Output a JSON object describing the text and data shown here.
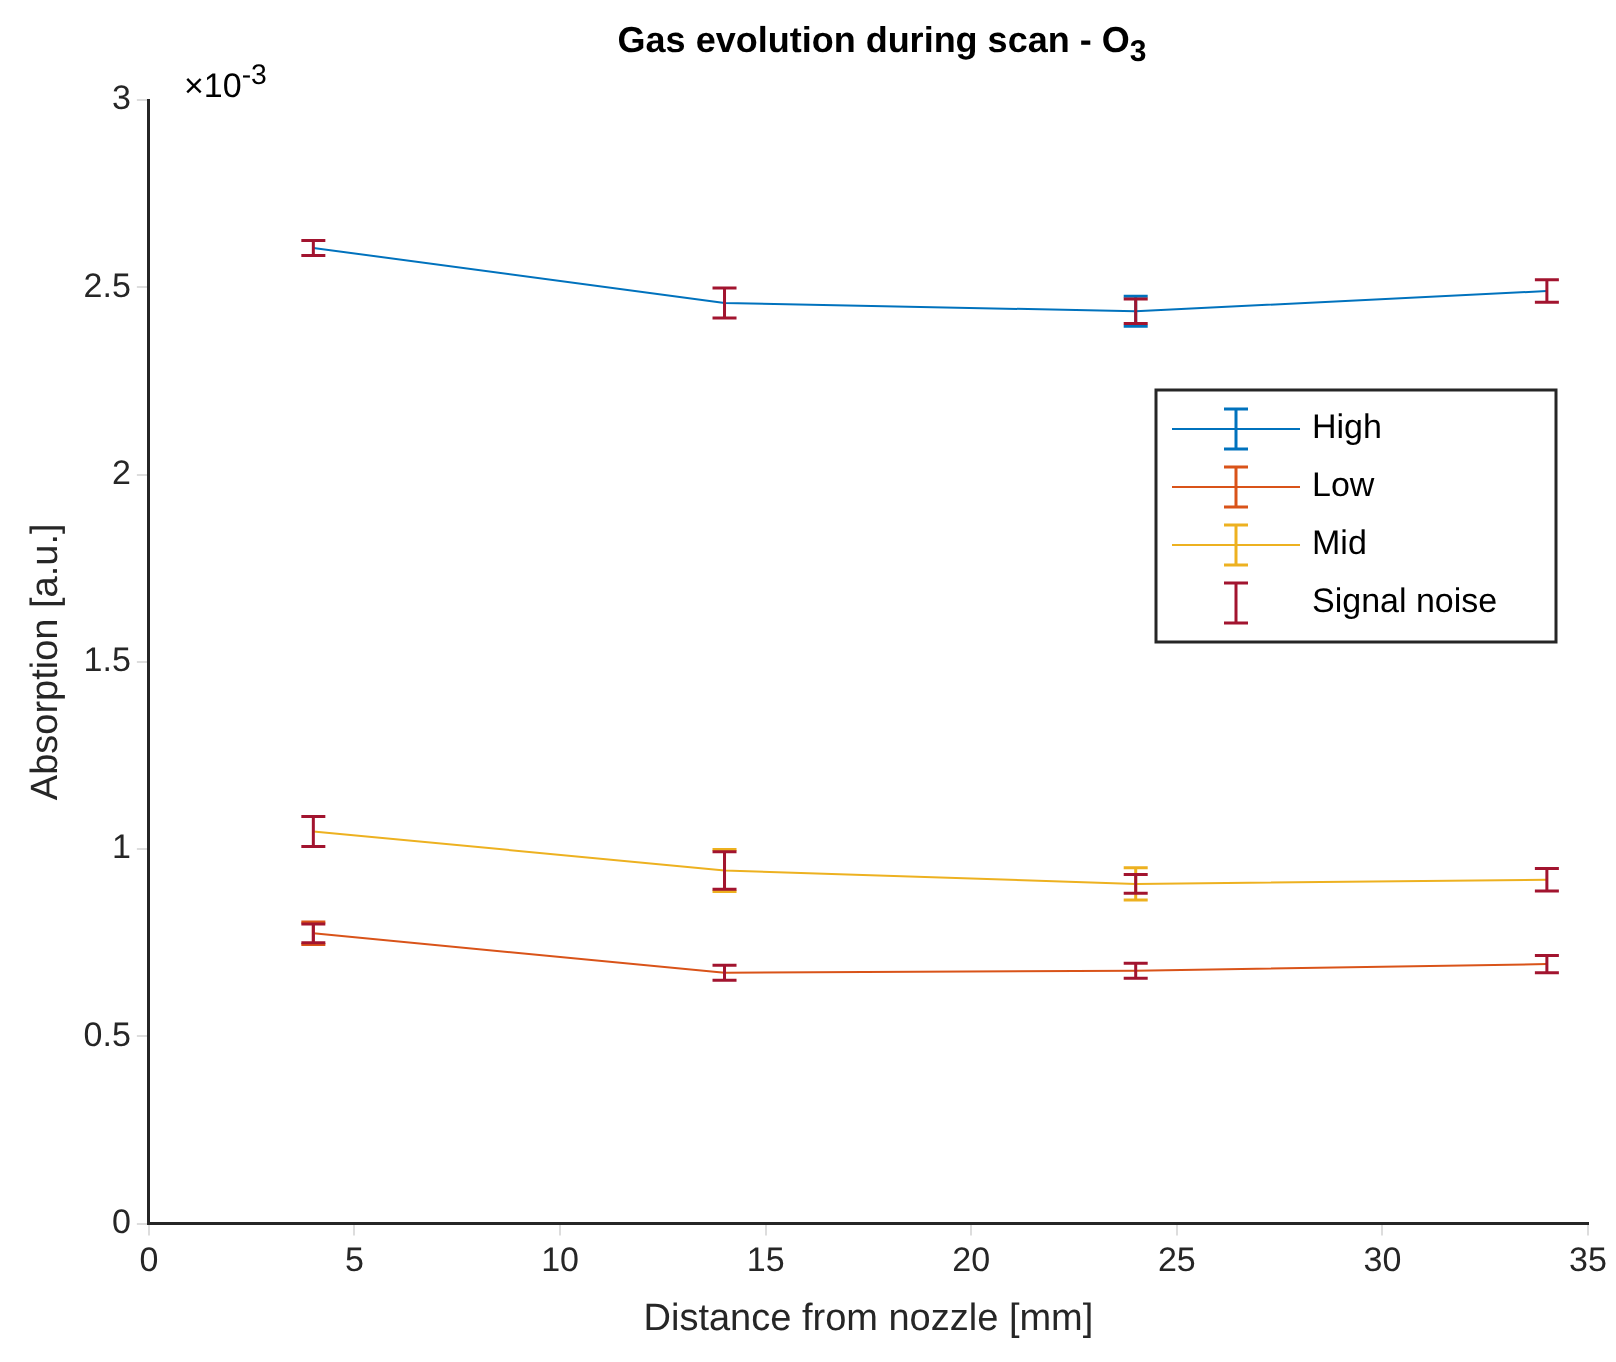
{
  "chart_data": {
    "type": "line",
    "title": "Gas evolution during scan - O$_{3}$",
    "xlabel": "Distance from nozzle [mm]",
    "ylabel": "Absorption [a.u.]",
    "annotations": [
      "×10$^{-3}$"
    ],
    "xlim": [
      0,
      35
    ],
    "xticks": [
      0,
      5,
      10,
      15,
      20,
      25,
      30,
      35
    ],
    "ylim": [
      0,
      3
    ],
    "yticks": [
      0,
      0.5,
      1,
      1.5,
      2,
      2.5,
      3
    ],
    "grid": false,
    "legend": "right",
    "series": [
      {
        "name": "High",
        "color": "#0072bd",
        "x": [
          4,
          14,
          24,
          34
        ],
        "values": [
          2.605,
          2.458,
          2.436,
          2.49
        ],
        "errors": [
          null,
          null,
          0.04,
          null
        ]
      },
      {
        "name": "Low",
        "color": "#d95319",
        "x": [
          4,
          14,
          24,
          34
        ],
        "values": [
          0.775,
          0.67,
          0.675,
          0.693
        ],
        "errors": [
          0.03,
          null,
          null,
          null
        ]
      },
      {
        "name": "Mid",
        "color": "#edb120",
        "x": [
          4,
          14,
          24,
          34
        ],
        "values": [
          1.047,
          0.943,
          0.907,
          0.918
        ],
        "errors": [
          null,
          0.056,
          0.043,
          null
        ]
      },
      {
        "name": "Signal noise",
        "color": "#a2142f",
        "type": "scatter",
        "x": [
          4,
          14,
          24,
          34,
          4,
          14,
          24,
          34,
          4,
          14,
          24,
          34
        ],
        "values": [
          2.605,
          2.458,
          2.436,
          2.49,
          0.775,
          0.67,
          0.675,
          0.693,
          1.047,
          0.943,
          0.907,
          0.918
        ],
        "errors": [
          0.02,
          0.04,
          0.033,
          0.03,
          0.025,
          0.02,
          0.02,
          0.023,
          0.04,
          0.05,
          0.025,
          0.03
        ]
      }
    ]
  }
}
